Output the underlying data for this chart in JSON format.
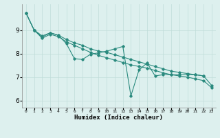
{
  "xlabel": "Humidex (Indice chaleur)",
  "x": [
    0,
    1,
    2,
    3,
    4,
    5,
    6,
    7,
    8,
    9,
    10,
    11,
    12,
    13,
    14,
    15,
    16,
    17,
    18,
    19,
    20,
    21,
    22,
    23
  ],
  "line_spiky": [
    9.72,
    9.0,
    8.75,
    8.88,
    8.78,
    8.42,
    7.78,
    7.75,
    7.97,
    8.03,
    8.1,
    8.2,
    8.3,
    6.2,
    7.3,
    7.6,
    7.05,
    7.1,
    7.1,
    7.1,
    7.1,
    7.1,
    7.05,
    null
  ],
  "line_upper": [
    9.72,
    9.0,
    8.7,
    8.88,
    8.78,
    8.6,
    8.45,
    8.35,
    8.2,
    8.1,
    8.05,
    7.95,
    7.85,
    7.75,
    7.65,
    7.55,
    7.45,
    7.35,
    7.25,
    7.2,
    7.15,
    7.1,
    7.05,
    6.65
  ],
  "line_lower": [
    9.72,
    9.0,
    8.65,
    8.82,
    8.72,
    8.5,
    8.35,
    8.2,
    8.05,
    7.92,
    7.82,
    7.72,
    7.62,
    7.52,
    7.45,
    7.38,
    7.28,
    7.18,
    7.1,
    7.05,
    7.0,
    6.92,
    6.85,
    6.55
  ],
  "line_color": "#2a8a7e",
  "bg_color": "#ddf0ee",
  "grid_color": "#c0ddd9",
  "ylim": [
    5.7,
    10.1
  ],
  "yticks": [
    6,
    7,
    8,
    9
  ],
  "xlim": [
    -0.5,
    23.5
  ],
  "marker": "D",
  "markersize": 1.8,
  "linewidth": 0.8
}
